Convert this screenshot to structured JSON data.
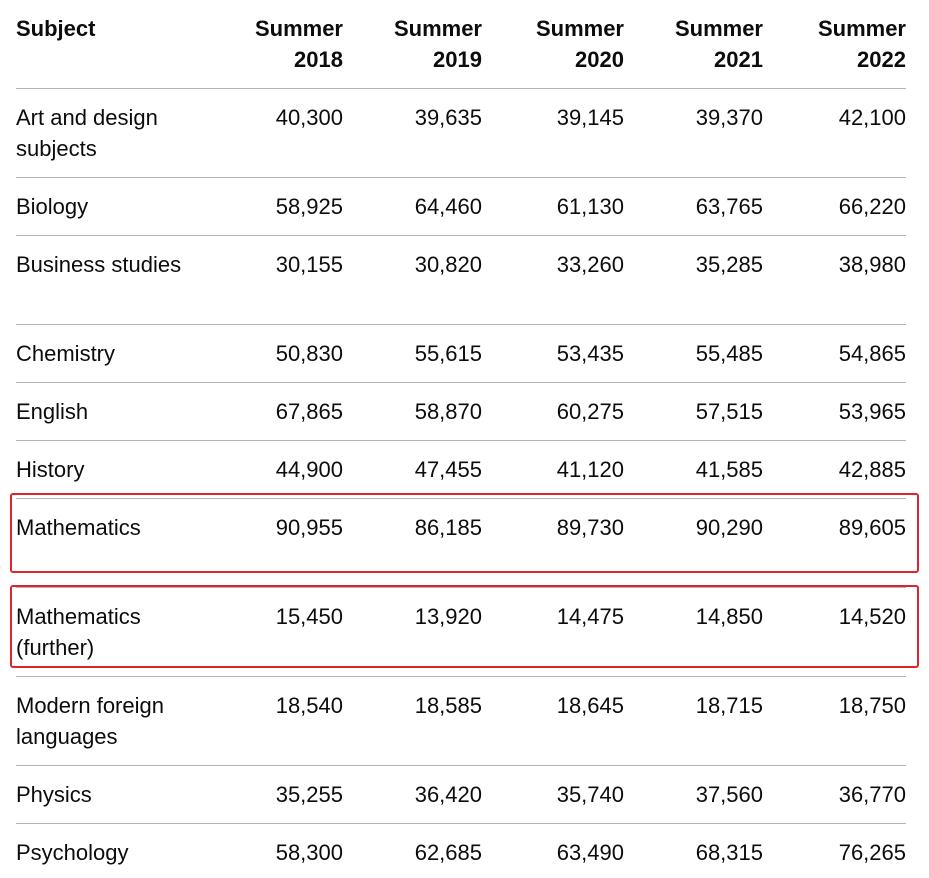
{
  "table": {
    "headers": {
      "subject": "Subject",
      "years": [
        {
          "line1": "Summer",
          "line2": "2018"
        },
        {
          "line1": "Summer",
          "line2": "2019"
        },
        {
          "line1": "Summer",
          "line2": "2020"
        },
        {
          "line1": "Summer",
          "line2": "2021"
        },
        {
          "line1": "Summer",
          "line2": "2022"
        }
      ]
    },
    "rows": [
      {
        "subject": "Art and design subjects",
        "values": [
          "40,300",
          "39,635",
          "39,145",
          "39,370",
          "42,100"
        ]
      },
      {
        "subject": "Biology",
        "values": [
          "58,925",
          "64,460",
          "61,130",
          "63,765",
          "66,220"
        ]
      },
      {
        "subject": "Business studies",
        "values": [
          "30,155",
          "30,820",
          "33,260",
          "35,285",
          "38,980"
        ]
      },
      {
        "subject": "Chemistry",
        "values": [
          "50,830",
          "55,615",
          "53,435",
          "55,485",
          "54,865"
        ]
      },
      {
        "subject": "English",
        "values": [
          "67,865",
          "58,870",
          "60,275",
          "57,515",
          "53,965"
        ]
      },
      {
        "subject": "History",
        "values": [
          "44,900",
          "47,455",
          "41,120",
          "41,585",
          "42,885"
        ]
      },
      {
        "subject": "Mathematics",
        "values": [
          "90,955",
          "86,185",
          "89,730",
          "90,290",
          "89,605"
        ]
      },
      {
        "subject": "Mathematics (further)",
        "values": [
          "15,450",
          "13,920",
          "14,475",
          "14,850",
          "14,520"
        ]
      },
      {
        "subject": "Modern foreign languages",
        "values": [
          "18,540",
          "18,585",
          "18,645",
          "18,715",
          "18,750"
        ]
      },
      {
        "subject": "Physics",
        "values": [
          "35,255",
          "36,420",
          "35,740",
          "37,560",
          "36,770"
        ]
      },
      {
        "subject": "Psychology",
        "values": [
          "58,300",
          "62,685",
          "63,490",
          "68,315",
          "76,265"
        ]
      }
    ]
  },
  "highlight_color": "#e0242b"
}
